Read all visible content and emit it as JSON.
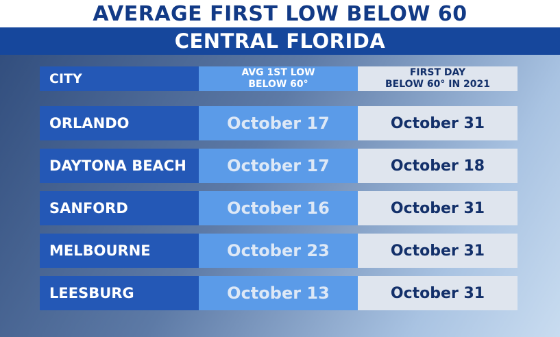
{
  "header": {
    "title": "AVERAGE FIRST LOW BELOW 60",
    "subtitle": "CENTRAL FLORIDA"
  },
  "table": {
    "columns": [
      "CITY",
      "AVG 1ST LOW\nBELOW 60°",
      "FIRST DAY\nBELOW 60° IN 2021"
    ],
    "rows": [
      [
        "ORLANDO",
        "October 17",
        "October 31"
      ],
      [
        "DAYTONA BEACH",
        "October 17",
        "October 18"
      ],
      [
        "SANFORD",
        "October 16",
        "October 31"
      ],
      [
        "MELBOURNE",
        "October 23",
        "October 31"
      ],
      [
        "LEESBURG",
        "October 13",
        "October 31"
      ]
    ]
  }
}
